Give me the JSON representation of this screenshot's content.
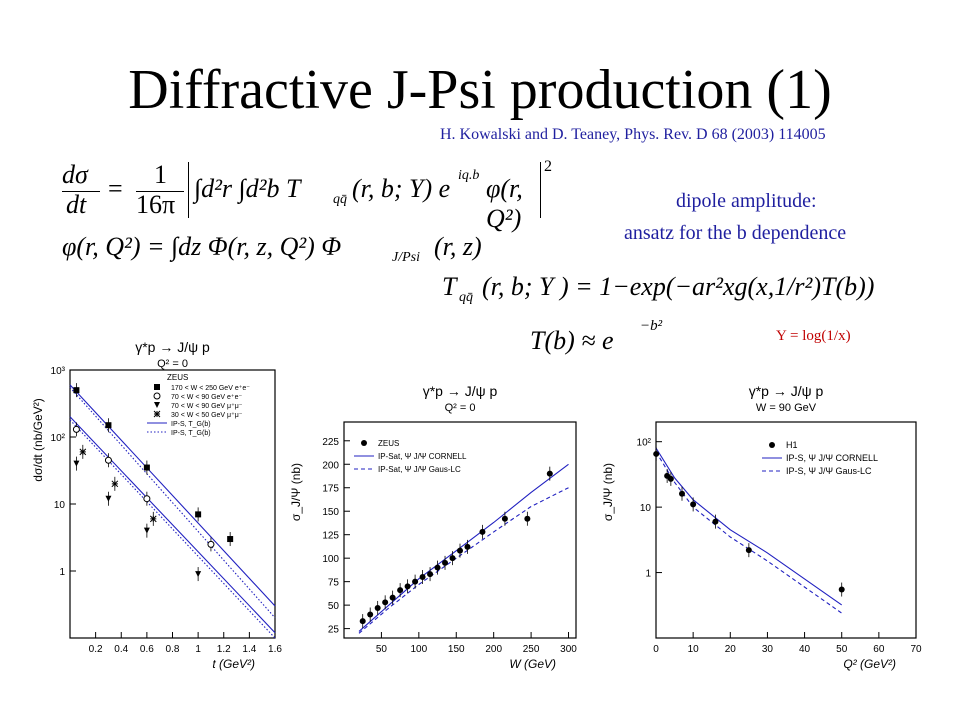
{
  "slide": {
    "title": "Diffractive J-Psi production (1)",
    "reference": "H. Kowalski and D. Teaney, Phys. Rev. D 68 (2003) 114005",
    "dipole_line1": "dipole amplitude:",
    "dipole_line2": "ansatz for the b dependence",
    "y_def": "Y = log(1/x)",
    "colors": {
      "accent_blue": "#1f1f9f",
      "red": "#c00000",
      "curve_blue": "#2020c0"
    }
  },
  "equations": {
    "eq1_lhs_num": "dσ",
    "eq1_lhs_den": "dt",
    "eq1_eq": "=",
    "eq1_frac_num": "1",
    "eq1_frac_den": "16π",
    "eq1_body": "∫d²r ∫d²b T",
    "eq1_sub": "qq̄",
    "eq1_tail": "(r, b; Y) e",
    "eq1_exp": "iq.b",
    "eq1_phi": "φ(r, Q²)",
    "eq1_sq": "2",
    "eq2_lhs": "φ(r, Q²) = ∫dz Φ(r, z, Q²) Φ",
    "eq2_sub": "J/Psi",
    "eq2_tail": "(r, z)",
    "eq3_T": "T",
    "eq3_sub": "qq̄",
    "eq3_rest": "(r, b; Y ) = 1−exp(−ar²xg(x,1/r²)T(b))",
    "eq4_lhs": "T(b) ≈ e",
    "eq4_exp": "−b²"
  },
  "chart_data": [
    {
      "type": "scatter",
      "title": "γ*p → J/ψ p",
      "subtitle": "Q² = 0",
      "xlabel": "t (GeV²)",
      "ylabel": "dσ/dt (nb/GeV²)",
      "xlim": [
        0,
        1.6
      ],
      "ylim": [
        0.1,
        1000
      ],
      "log_y": true,
      "x_ticks": [
        "0.2",
        "0.4",
        "0.6",
        "0.8",
        "1",
        "1.2",
        "1.4",
        "1.6"
      ],
      "y_ticks": [
        "1",
        "10",
        "10²",
        "10³"
      ],
      "legend": {
        "header": "ZEUS",
        "entries": [
          {
            "label": "170 < W < 250 GeV  e⁺e⁻",
            "marker": "square"
          },
          {
            "label": "70 < W < 90 GeV  e⁺e⁻",
            "marker": "circle-open"
          },
          {
            "label": "70 < W < 90 GeV  μ⁺μ⁻",
            "marker": "triangle-down"
          },
          {
            "label": "30 < W < 50 GeV  μ⁺μ⁻",
            "marker": "star"
          }
        ],
        "curves": [
          "IP-S, T_G(b)",
          "IP-S, T_G(b)"
        ]
      },
      "series": [
        {
          "marker": "square",
          "x": [
            0.05,
            0.3,
            0.6,
            1.0,
            1.25
          ],
          "y": [
            500,
            150,
            35,
            7,
            3
          ]
        },
        {
          "marker": "circle-open",
          "x": [
            0.05,
            0.3,
            0.6,
            1.1
          ],
          "y": [
            130,
            45,
            12,
            2.5
          ]
        },
        {
          "marker": "triangle-down",
          "x": [
            0.05,
            0.3,
            0.6,
            1.0
          ],
          "y": [
            40,
            12,
            4,
            0.9
          ]
        },
        {
          "marker": "star",
          "x": [
            0.1,
            0.35,
            0.65
          ],
          "y": [
            60,
            20,
            6
          ]
        }
      ],
      "curves": [
        {
          "style": "solid",
          "x": [
            0,
            1.6
          ],
          "y": [
            600,
            0.3
          ]
        },
        {
          "style": "dotted",
          "x": [
            0,
            1.6
          ],
          "y": [
            550,
            0.2
          ]
        },
        {
          "style": "solid",
          "x": [
            0,
            1.6
          ],
          "y": [
            200,
            0.12
          ]
        },
        {
          "style": "dotted",
          "x": [
            0,
            1.6
          ],
          "y": [
            180,
            0.1
          ]
        }
      ]
    },
    {
      "type": "scatter",
      "title": "γ*p → J/ψ p",
      "subtitle": "Q² = 0",
      "xlabel": "W (GeV)",
      "ylabel": "σ_J/Ψ (nb)",
      "xlim": [
        0,
        310
      ],
      "ylim": [
        15,
        245
      ],
      "x_ticks": [
        "50",
        "100",
        "150",
        "200",
        "250",
        "300"
      ],
      "y_ticks": [
        "25",
        "50",
        "75",
        "100",
        "125",
        "150",
        "175",
        "200",
        "225"
      ],
      "legend": {
        "entries": [
          {
            "label": "ZEUS",
            "marker": "dot"
          },
          {
            "label": "IP-Sat, Ψ J/Ψ CORNELL",
            "style": "solid"
          },
          {
            "label": "IP-Sat, Ψ J/Ψ Gaus-LC",
            "style": "dashed"
          }
        ]
      },
      "series": [
        {
          "name": "ZEUS",
          "x": [
            25,
            35,
            45,
            55,
            65,
            75,
            85,
            95,
            105,
            115,
            125,
            135,
            145,
            155,
            165,
            185,
            215,
            245,
            275
          ],
          "y": [
            33,
            40,
            47,
            53,
            58,
            66,
            70,
            75,
            80,
            83,
            90,
            95,
            100,
            108,
            112,
            128,
            142,
            142,
            190
          ]
        }
      ],
      "curves": [
        {
          "style": "solid",
          "x": [
            20,
            60,
            100,
            150,
            200,
            250,
            300
          ],
          "y": [
            22,
            50,
            78,
            108,
            138,
            170,
            200
          ]
        },
        {
          "style": "dashed",
          "x": [
            20,
            60,
            100,
            150,
            200,
            250,
            300
          ],
          "y": [
            20,
            47,
            72,
            100,
            128,
            155,
            175
          ]
        }
      ]
    },
    {
      "type": "scatter",
      "title": "γ*p → J/ψ p",
      "subtitle": "W = 90 GeV",
      "xlabel": "Q² (GeV²)",
      "ylabel": "σ_J/Ψ (nb)",
      "xlim": [
        0,
        70
      ],
      "ylim": [
        0.1,
        200
      ],
      "log_y": true,
      "x_ticks": [
        "0",
        "10",
        "20",
        "30",
        "40",
        "50",
        "60",
        "70"
      ],
      "y_ticks": [
        "1",
        "10",
        "10²"
      ],
      "legend": {
        "entries": [
          {
            "label": "H1",
            "marker": "dot"
          },
          {
            "label": "IP-S, Ψ J/Ψ CORNELL",
            "style": "solid"
          },
          {
            "label": "IP-S, Ψ J/Ψ Gaus-LC",
            "style": "dashed"
          }
        ]
      },
      "series": [
        {
          "name": "H1",
          "x": [
            0.05,
            3,
            4,
            7,
            10,
            16,
            25,
            50
          ],
          "y": [
            65,
            30,
            27,
            16,
            11,
            6,
            2.2,
            0.55
          ]
        }
      ],
      "curves": [
        {
          "style": "solid",
          "x": [
            0,
            5,
            10,
            20,
            30,
            50
          ],
          "y": [
            80,
            28,
            13,
            4.5,
            2.0,
            0.32
          ]
        },
        {
          "style": "dashed",
          "x": [
            0,
            5,
            10,
            20,
            30,
            50
          ],
          "y": [
            70,
            24,
            10,
            3.5,
            1.5,
            0.24
          ]
        }
      ]
    }
  ]
}
